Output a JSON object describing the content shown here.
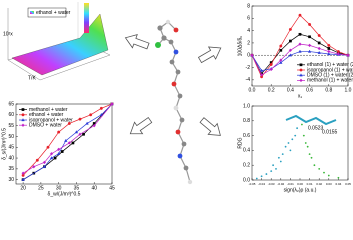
{
  "chart_data": [
    {
      "type": "surface",
      "legend": "ethanol + water",
      "xlabel": "T/K",
      "ylabel": "10²x"
    },
    {
      "type": "line",
      "xlabel": "x₁",
      "ylabel": "100Δδ/δ₀",
      "legend_corner": "lower right",
      "zero_line": true,
      "x": [
        0,
        0.1,
        0.2,
        0.3,
        0.4,
        0.5,
        0.6,
        0.7,
        0.8,
        0.9,
        1.0
      ],
      "xlim": [
        0,
        1.0
      ],
      "xticks": [
        {
          "value": 0,
          "label": "0.0"
        },
        {
          "value": 0.2,
          "label": "0.2"
        },
        {
          "value": 0.4,
          "label": "0.4"
        },
        {
          "value": 0.6,
          "label": "0.6"
        },
        {
          "value": 0.8,
          "label": "0.8"
        },
        {
          "value": 1.0,
          "label": "1.0"
        }
      ],
      "ylim": [
        -5,
        8
      ],
      "yticks": [
        -4,
        -2,
        0,
        2,
        4,
        6,
        8
      ],
      "series": [
        {
          "name": "ethanol (1) + water (2)",
          "color": "#000000",
          "values": [
            0,
            -3.0,
            -1.2,
            0.8,
            2.3,
            3.4,
            3.0,
            2.0,
            1.1,
            0.4,
            0
          ]
        },
        {
          "name": "isopropanol (1) + water (2)",
          "color": "#e8202a",
          "values": [
            0,
            -3.5,
            -1.5,
            1.5,
            4.2,
            6.5,
            5.0,
            3.2,
            1.6,
            0.6,
            0
          ]
        },
        {
          "name": "DMSO (1) + water (2)",
          "color": "#2a3ad8",
          "values": [
            0,
            -2.5,
            -2.2,
            -1.2,
            0,
            0.6,
            0.6,
            0.4,
            0.2,
            0.1,
            0
          ]
        },
        {
          "name": "methanol (1) + water (2)",
          "color": "#c020c8",
          "values": [
            0,
            -3.2,
            -2.3,
            -0.8,
            0.8,
            1.8,
            1.6,
            1.1,
            0.6,
            0.2,
            0
          ]
        }
      ]
    },
    {
      "type": "line",
      "xlabel": "δ_w/(J/m³)^0.5",
      "ylabel": "δ_s/(J/m³)^0.5",
      "legend_corner": "upper left",
      "xlim": [
        18,
        45
      ],
      "xticks": [
        20,
        25,
        30,
        35,
        40,
        45
      ],
      "ylim": [
        28,
        65
      ],
      "yticks": [
        30,
        35,
        40,
        45,
        50,
        55,
        60,
        65
      ],
      "series": [
        {
          "name": "methanol + water",
          "color": "#000000",
          "x": [
            20,
            23,
            26,
            29,
            31,
            34,
            37,
            40,
            45
          ],
          "values": [
            30,
            33,
            36,
            40,
            43,
            47,
            51,
            56,
            65
          ]
        },
        {
          "name": "ethanol + water",
          "color": "#e8202a",
          "x": [
            20,
            24,
            27,
            30,
            33,
            36,
            39,
            42,
            45
          ],
          "values": [
            32,
            39,
            45,
            52,
            56,
            58,
            60,
            63,
            65
          ]
        },
        {
          "name": "isopropanol + water",
          "color": "#2a3ad8",
          "x": [
            20,
            26,
            28,
            30,
            32,
            35,
            38,
            42,
            45
          ],
          "values": [
            30,
            36,
            40,
            42,
            48,
            52,
            56,
            60,
            65
          ]
        },
        {
          "name": "DMSO + water",
          "color": "#c020c8",
          "x": [
            20,
            23,
            26,
            28,
            30,
            33,
            36,
            40,
            45
          ],
          "values": [
            33,
            36,
            38,
            42,
            44,
            47,
            51,
            55,
            65
          ]
        }
      ]
    },
    {
      "type": "scatter",
      "xlabel": "sign(λ₂)ρ (a.u.)",
      "ylabel": "RDG",
      "color": "#3ab83a",
      "annotations": [
        "0.0523",
        "0.0155"
      ],
      "xlim": [
        -0.05,
        0.05
      ],
      "xticks": [
        -0.05,
        -0.04,
        -0.03,
        -0.02,
        -0.01,
        {
          "value": 0,
          "label": "0.00"
        },
        0.01,
        0.02,
        0.03,
        0.04,
        0.05
      ],
      "ylim": [
        0,
        1
      ],
      "yticks": [
        {
          "value": 0,
          "label": "0.0"
        },
        {
          "value": 0.2,
          "label": "0.2"
        },
        {
          "value": 0.4,
          "label": "0.4"
        },
        {
          "value": 0.6,
          "label": "0.6"
        },
        {
          "value": 0.8,
          "label": "0.8"
        },
        {
          "value": 1,
          "label": "1.0"
        }
      ],
      "x": [
        -0.045,
        -0.04,
        -0.035,
        -0.03,
        -0.028,
        -0.025,
        -0.022,
        -0.02,
        -0.018,
        -0.015,
        -0.012,
        -0.01,
        -0.008,
        -0.005,
        -0.003,
        0.002,
        0.004,
        0.006,
        0.008,
        0.01,
        0.012,
        0.015,
        0.02,
        0.025,
        0.03,
        0.04
      ],
      "values": [
        0.02,
        0.05,
        0.08,
        0.12,
        0.2,
        0.15,
        0.3,
        0.25,
        0.35,
        0.45,
        0.5,
        0.4,
        0.55,
        0.6,
        0.7,
        0.75,
        0.6,
        0.5,
        0.45,
        0.35,
        0.3,
        0.2,
        0.15,
        0.1,
        0.06,
        0.03
      ]
    }
  ]
}
